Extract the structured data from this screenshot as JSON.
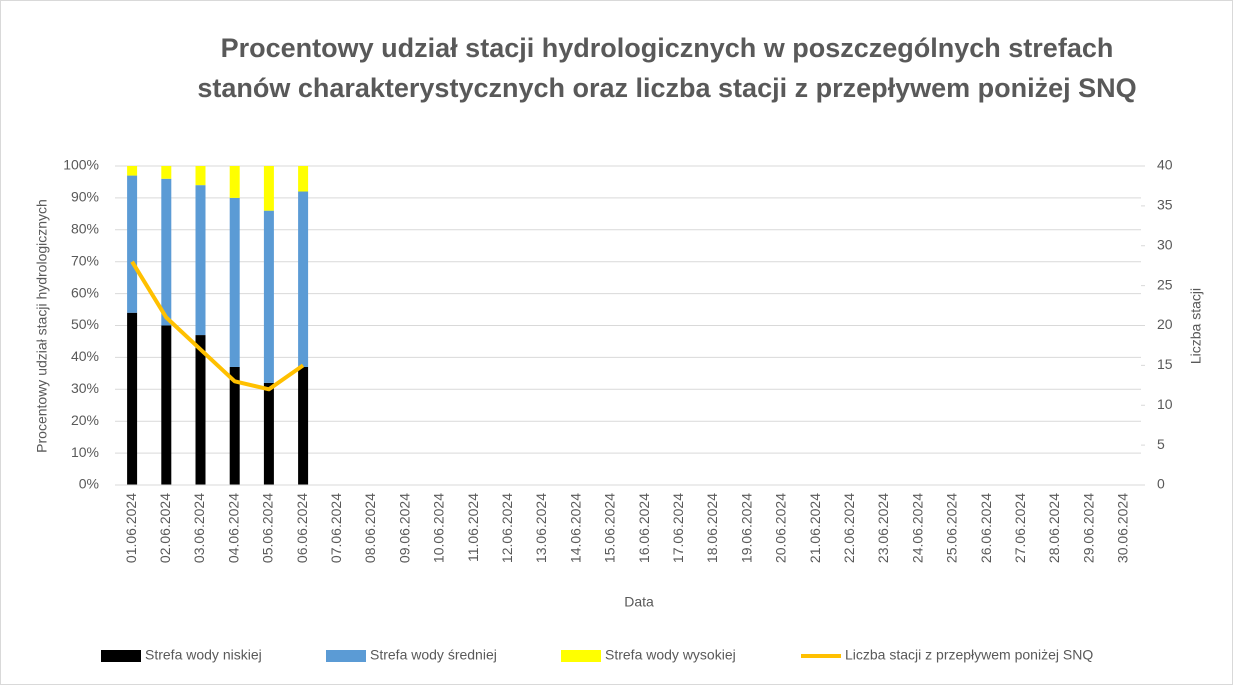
{
  "chart_data": {
    "type": "bar",
    "stacked": true,
    "title": "Procentowy udział stacji hydrologicznych w poszczególnych strefach stanów charakterystycznych oraz liczba stacji z przepływem poniżej SNQ",
    "x_label": "Data",
    "y_label": "Procentowy udział stacji hydrologicznych",
    "y2_label": "Liczba stacji",
    "categories": [
      "01.06.2024",
      "02.06.2024",
      "03.06.2024",
      "04.06.2024",
      "05.06.2024",
      "06.06.2024",
      "07.06.2024",
      "08.06.2024",
      "09.06.2024",
      "10.06.2024",
      "11.06.2024",
      "12.06.2024",
      "13.06.2024",
      "14.06.2024",
      "15.06.2024",
      "16.06.2024",
      "17.06.2024",
      "18.06.2024",
      "19.06.2024",
      "20.06.2024",
      "21.06.2024",
      "22.06.2024",
      "23.06.2024",
      "24.06.2024",
      "25.06.2024",
      "26.06.2024",
      "27.06.2024",
      "28.06.2024",
      "29.06.2024",
      "30.06.2024"
    ],
    "series": [
      {
        "name": "Strefa wody niskiej",
        "color": "#000000",
        "values": [
          54,
          50,
          47,
          37,
          32,
          37,
          null,
          null,
          null,
          null,
          null,
          null,
          null,
          null,
          null,
          null,
          null,
          null,
          null,
          null,
          null,
          null,
          null,
          null,
          null,
          null,
          null,
          null,
          null,
          null
        ]
      },
      {
        "name": "Strefa wody średniej",
        "color": "#5b9bd5",
        "values": [
          43,
          46,
          47,
          53,
          54,
          55,
          null,
          null,
          null,
          null,
          null,
          null,
          null,
          null,
          null,
          null,
          null,
          null,
          null,
          null,
          null,
          null,
          null,
          null,
          null,
          null,
          null,
          null,
          null,
          null
        ]
      },
      {
        "name": "Strefa wody wysokiej",
        "color": "#ffff00",
        "values": [
          3,
          4,
          6,
          10,
          14,
          8,
          null,
          null,
          null,
          null,
          null,
          null,
          null,
          null,
          null,
          null,
          null,
          null,
          null,
          null,
          null,
          null,
          null,
          null,
          null,
          null,
          null,
          null,
          null,
          null
        ]
      },
      {
        "name": "Liczba stacji z przepływem poniżej SNQ",
        "color": "#ffc000",
        "type": "line",
        "axis": "y2",
        "values": [
          28,
          21,
          17,
          13,
          12,
          15,
          null,
          null,
          null,
          null,
          null,
          null,
          null,
          null,
          null,
          null,
          null,
          null,
          null,
          null,
          null,
          null,
          null,
          null,
          null,
          null,
          null,
          null,
          null,
          null
        ]
      }
    ],
    "ylim": [
      0,
      100
    ],
    "yticks": [
      {
        "value": 0,
        "label": "0%"
      },
      {
        "value": 10,
        "label": "10%"
      },
      {
        "value": 20,
        "label": "20%"
      },
      {
        "value": 30,
        "label": "30%"
      },
      {
        "value": 40,
        "label": "40%"
      },
      {
        "value": 50,
        "label": "50%"
      },
      {
        "value": 60,
        "label": "60%"
      },
      {
        "value": 70,
        "label": "70%"
      },
      {
        "value": 80,
        "label": "80%"
      },
      {
        "value": 90,
        "label": "90%"
      },
      {
        "value": 100,
        "label": "100%"
      }
    ],
    "y2lim": [
      0,
      40
    ],
    "y2ticks": [
      0,
      5,
      10,
      15,
      20,
      25,
      30,
      35,
      40
    ],
    "grid": true,
    "legend": "bottom"
  }
}
